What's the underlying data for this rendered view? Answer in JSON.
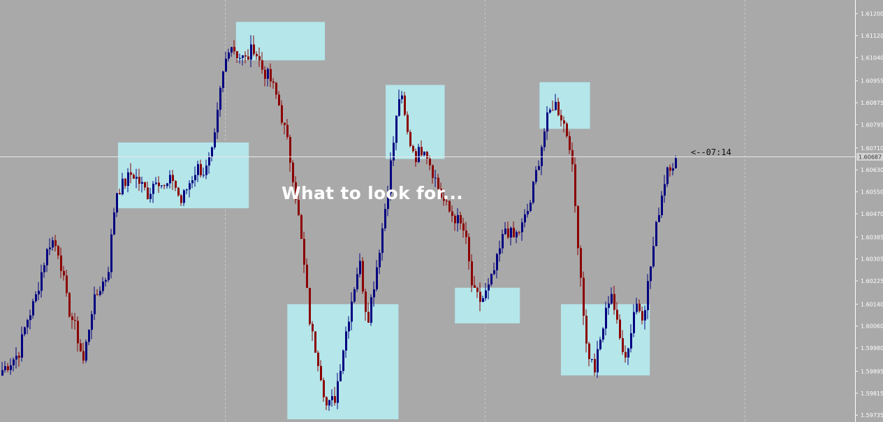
{
  "overlay_title": "What to look for...",
  "countdown_label": "<--07:14",
  "colors": {
    "background": "#a9a9a9",
    "bull_candle": "#000080",
    "bear_candle": "#8b0000",
    "highlight_box": "#b4e6ea",
    "grid": "#c8c8c8",
    "price_line": "#e8e8e8",
    "current_price_tag": "#d3d3d3"
  },
  "chart_data": {
    "type": "candlestick",
    "title": "",
    "grid": true,
    "ylim": [
      1.5971,
      1.6125
    ],
    "y_ticks": [
      "1.61200",
      "1.61120",
      "1.61040",
      "1.60955",
      "1.60875",
      "1.60795",
      "1.60710",
      "1.60630",
      "1.60550",
      "1.60470",
      "1.60385",
      "1.60305",
      "1.60225",
      "1.60140",
      "1.60060",
      "1.59980",
      "1.59895",
      "1.59815",
      "1.59735"
    ],
    "current_price": 1.6068,
    "current_price_label": "1.60687",
    "price_path": [
      1.599,
      1.5993,
      1.5996,
      1.6008,
      1.6015,
      1.6028,
      1.6038,
      1.6033,
      1.6014,
      1.6005,
      1.5993,
      1.6012,
      1.602,
      1.6025,
      1.6055,
      1.6058,
      1.6062,
      1.6058,
      1.6054,
      1.6061,
      1.6056,
      1.606,
      1.6051,
      1.6058,
      1.6064,
      1.6062,
      1.607,
      1.6095,
      1.611,
      1.6105,
      1.6103,
      1.6108,
      1.61,
      1.6096,
      1.6088,
      1.6075,
      1.6058,
      1.6033,
      1.6005,
      1.5993,
      1.5976,
      1.598,
      1.5998,
      1.6015,
      1.603,
      1.6008,
      1.6025,
      1.6045,
      1.6068,
      1.6092,
      1.6075,
      1.6068,
      1.6072,
      1.6063,
      1.6054,
      1.6048,
      1.6045,
      1.604,
      1.6018,
      1.6015,
      1.602,
      1.603,
      1.6042,
      1.6038,
      1.6042,
      1.605,
      1.6065,
      1.608,
      1.6088,
      1.6082,
      1.6072,
      1.6035,
      1.5998,
      1.599,
      1.6005,
      1.602,
      1.6002,
      1.5995,
      1.6015,
      1.601,
      1.603,
      1.605,
      1.6065,
      1.6066
    ],
    "highlight_zones": [
      {
        "t_start": 0.138,
        "t_end": 0.291,
        "high": 1.6073,
        "low": 1.6049
      },
      {
        "t_start": 0.276,
        "t_end": 0.38,
        "high": 1.6117,
        "low": 1.6103
      },
      {
        "t_start": 0.336,
        "t_end": 0.466,
        "high": 1.6014,
        "low": 1.5972
      },
      {
        "t_start": 0.451,
        "t_end": 0.52,
        "high": 1.6094,
        "low": 1.6067
      },
      {
        "t_start": 0.532,
        "t_end": 0.608,
        "high": 1.602,
        "low": 1.6007
      },
      {
        "t_start": 0.631,
        "t_end": 0.69,
        "high": 1.6095,
        "low": 1.6078
      },
      {
        "t_start": 0.656,
        "t_end": 0.76,
        "high": 1.6014,
        "low": 1.5988
      }
    ],
    "vertical_grid_t": [
      0.263,
      0.567,
      0.871
    ]
  }
}
